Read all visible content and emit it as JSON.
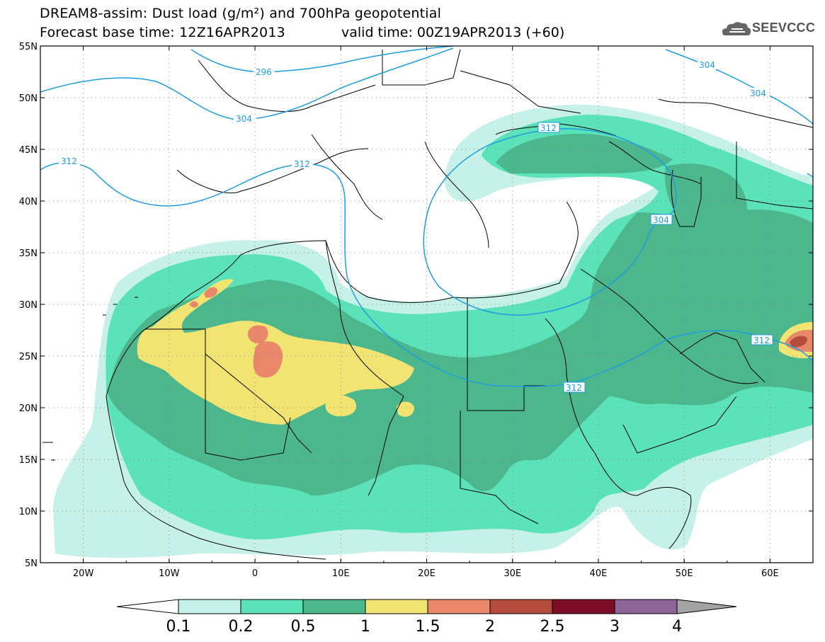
{
  "title": {
    "line1": "DREAM8-assim: Dust load (g/m²) and 700hPa geopotential",
    "line2a": "Forecast base time: 12Z16APR2013",
    "line2b": "valid time: 00Z19APR2013 (+60)"
  },
  "logo": {
    "text": "SEEVCCC",
    "icon": "cloud-icon"
  },
  "map": {
    "lat_labels": [
      "55N",
      "50N",
      "45N",
      "40N",
      "35N",
      "30N",
      "25N",
      "20N",
      "15N",
      "10N",
      "5N"
    ],
    "lon_labels": [
      "20W",
      "10W",
      "0",
      "10E",
      "20E",
      "30E",
      "40E",
      "50E",
      "60E"
    ],
    "lon_range": [
      -25,
      65
    ],
    "lat_range": [
      5,
      55
    ],
    "contour_labels": [
      "296",
      "304",
      "304",
      "304",
      "312",
      "312",
      "312",
      "304",
      "312",
      "312"
    ]
  },
  "colorbar": {
    "labels": [
      "0.1",
      "0.2",
      "0.5",
      "1",
      "1.5",
      "2",
      "2.5",
      "3",
      "4"
    ],
    "colors": [
      "#ffffff",
      "#c6f1e8",
      "#5ce2b8",
      "#4cb68c",
      "#f2e473",
      "#e9876a",
      "#b54b3c",
      "#7e0d2a",
      "#8c6596",
      "#a3a3a3"
    ]
  },
  "colors": {
    "dust_01": "#c6f1e8",
    "dust_02": "#5ce2b8",
    "dust_05": "#4cb68c",
    "dust_1": "#f2e473",
    "dust_15": "#e9876a",
    "contour": "#1e9de0"
  }
}
